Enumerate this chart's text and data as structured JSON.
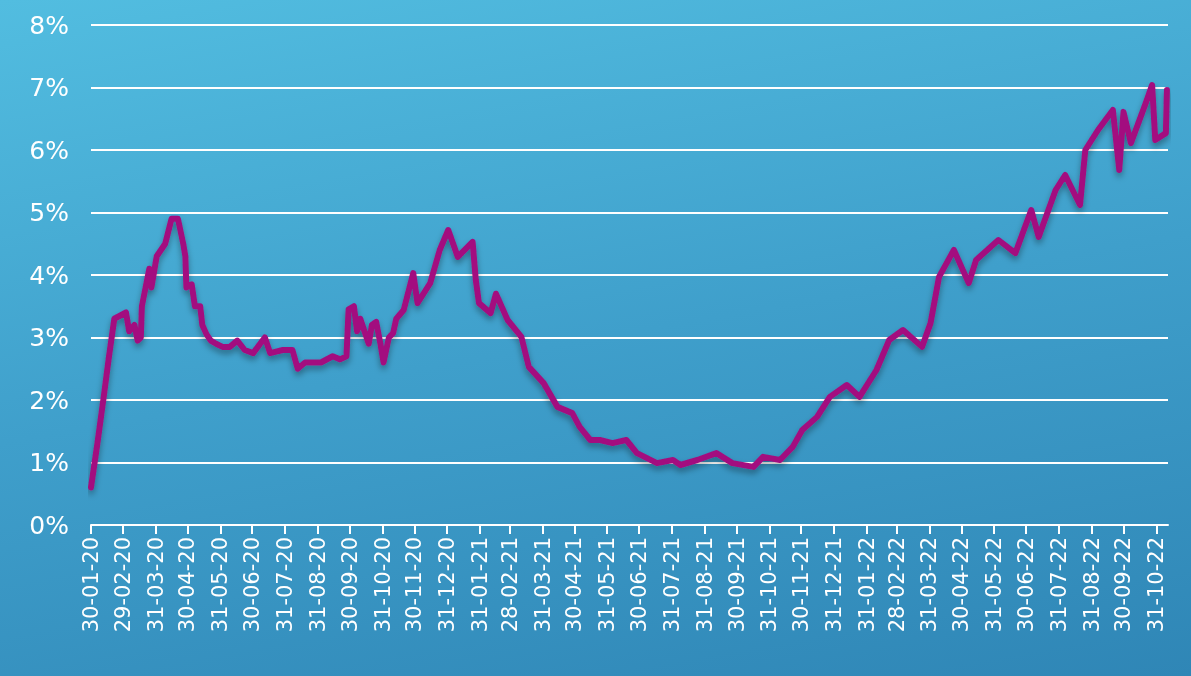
{
  "chart_data": {
    "type": "line",
    "grid": "y",
    "marker": "none",
    "line_style": "solid",
    "xlim": [
      "2020-01-30",
      "2022-11-11"
    ],
    "xticks": [
      {
        "value": "2020-01-30",
        "label": "30-01-20"
      },
      {
        "value": "2020-02-29",
        "label": "29-02-20"
      },
      {
        "value": "2020-03-31",
        "label": "31-03-20"
      },
      {
        "value": "2020-04-30",
        "label": "30-04-20"
      },
      {
        "value": "2020-05-31",
        "label": "31-05-20"
      },
      {
        "value": "2020-06-30",
        "label": "30-06-20"
      },
      {
        "value": "2020-07-31",
        "label": "31-07-20"
      },
      {
        "value": "2020-08-31",
        "label": "31-08-20"
      },
      {
        "value": "2020-09-30",
        "label": "30-09-20"
      },
      {
        "value": "2020-10-31",
        "label": "31-10-20"
      },
      {
        "value": "2020-11-30",
        "label": "30-11-20"
      },
      {
        "value": "2020-12-31",
        "label": "31-12-20"
      },
      {
        "value": "2021-01-31",
        "label": "31-01-21"
      },
      {
        "value": "2021-02-28",
        "label": "28-02-21"
      },
      {
        "value": "2021-03-31",
        "label": "31-03-21"
      },
      {
        "value": "2021-04-30",
        "label": "30-04-21"
      },
      {
        "value": "2021-05-31",
        "label": "31-05-21"
      },
      {
        "value": "2021-06-30",
        "label": "30-06-21"
      },
      {
        "value": "2021-07-31",
        "label": "31-07-21"
      },
      {
        "value": "2021-08-31",
        "label": "31-08-21"
      },
      {
        "value": "2021-09-30",
        "label": "30-09-21"
      },
      {
        "value": "2021-10-31",
        "label": "31-10-21"
      },
      {
        "value": "2021-11-30",
        "label": "30-11-21"
      },
      {
        "value": "2021-12-31",
        "label": "31-12-21"
      },
      {
        "value": "2022-01-31",
        "label": "31-01-22"
      },
      {
        "value": "2022-02-28",
        "label": "28-02-22"
      },
      {
        "value": "2022-03-31",
        "label": "31-03-22"
      },
      {
        "value": "2022-04-30",
        "label": "30-04-22"
      },
      {
        "value": "2022-05-31",
        "label": "31-05-22"
      },
      {
        "value": "2022-06-30",
        "label": "30-06-22"
      },
      {
        "value": "2022-07-31",
        "label": "31-07-22"
      },
      {
        "value": "2022-08-31",
        "label": "31-08-22"
      },
      {
        "value": "2022-09-30",
        "label": "30-09-22"
      },
      {
        "value": "2022-10-31",
        "label": "31-10-22"
      }
    ],
    "ylim": [
      0,
      8
    ],
    "yticks": [
      {
        "value": 0,
        "label": "0%"
      },
      {
        "value": 1,
        "label": "1%"
      },
      {
        "value": 2,
        "label": "2%"
      },
      {
        "value": 3,
        "label": "3%"
      },
      {
        "value": 4,
        "label": "4%"
      },
      {
        "value": 5,
        "label": "5%"
      },
      {
        "value": 6,
        "label": "6%"
      },
      {
        "value": 7,
        "label": "7%"
      },
      {
        "value": 8,
        "label": "8%"
      }
    ],
    "series": [
      {
        "color": "#a3117f",
        "x": [
          "2020-01-30",
          "2020-02-05",
          "2020-02-11",
          "2020-02-16",
          "2020-02-21",
          "2020-03-03",
          "2020-03-06",
          "2020-03-11",
          "2020-03-14",
          "2020-03-17",
          "2020-03-18",
          "2020-03-25",
          "2020-03-27",
          "2020-04-01",
          "2020-04-09",
          "2020-04-15",
          "2020-04-21",
          "2020-04-26",
          "2020-04-28",
          "2020-04-29",
          "2020-05-04",
          "2020-05-07",
          "2020-05-12",
          "2020-05-14",
          "2020-05-18",
          "2020-05-22",
          "2020-05-27",
          "2020-06-02",
          "2020-06-09",
          "2020-06-16",
          "2020-06-23",
          "2020-07-01",
          "2020-07-12",
          "2020-07-17",
          "2020-07-29",
          "2020-08-07",
          "2020-08-12",
          "2020-08-19",
          "2020-09-03",
          "2020-09-14",
          "2020-09-21",
          "2020-09-27",
          "2020-09-29",
          "2020-10-04",
          "2020-10-07",
          "2020-10-10",
          "2020-10-18",
          "2020-10-21",
          "2020-10-25",
          "2020-10-29",
          "2020-11-01",
          "2020-11-06",
          "2020-11-10",
          "2020-11-13",
          "2020-11-20",
          "2020-11-29",
          "2020-12-03",
          "2020-12-15",
          "2020-12-24",
          "2021-01-01",
          "2021-01-10",
          "2021-01-24",
          "2021-01-27",
          "2021-01-30",
          "2021-02-10",
          "2021-02-15",
          "2021-02-26",
          "2021-03-11",
          "2021-03-18",
          "2021-04-01",
          "2021-04-14",
          "2021-04-28",
          "2021-05-05",
          "2021-05-15",
          "2021-05-24",
          "2021-06-05",
          "2021-06-18",
          "2021-06-28",
          "2021-07-17",
          "2021-08-01",
          "2021-08-08",
          "2021-08-24",
          "2021-09-11",
          "2021-09-26",
          "2021-10-16",
          "2021-10-25",
          "2021-11-10",
          "2021-11-22",
          "2021-12-01",
          "2021-12-15",
          "2021-12-27",
          "2022-01-12",
          "2022-01-24",
          "2022-02-09",
          "2022-02-21",
          "2022-03-06",
          "2022-03-24",
          "2022-04-01",
          "2022-04-09",
          "2022-04-23",
          "2022-05-07",
          "2022-05-14",
          "2022-06-04",
          "2022-06-20",
          "2022-07-05",
          "2022-07-12",
          "2022-07-28",
          "2022-08-06",
          "2022-08-20",
          "2022-08-25",
          "2022-09-06",
          "2022-09-20",
          "2022-09-26",
          "2022-09-30",
          "2022-10-07",
          "2022-10-21",
          "2022-10-27",
          "2022-10-30",
          "2022-11-09",
          "2022-11-10"
        ],
        "values": [
          0.6,
          1.3,
          2.05,
          2.7,
          3.3,
          3.4,
          3.1,
          3.2,
          2.95,
          3.0,
          3.5,
          4.1,
          3.8,
          4.3,
          4.5,
          4.9,
          4.9,
          4.5,
          4.3,
          3.8,
          3.85,
          3.5,
          3.5,
          3.2,
          3.05,
          2.95,
          2.9,
          2.85,
          2.85,
          2.95,
          2.8,
          2.75,
          3.0,
          2.75,
          2.8,
          2.8,
          2.5,
          2.6,
          2.6,
          2.7,
          2.65,
          2.7,
          3.45,
          3.5,
          3.1,
          3.3,
          2.9,
          3.2,
          3.25,
          2.9,
          2.6,
          3.0,
          3.07,
          3.3,
          3.44,
          4.03,
          3.55,
          3.87,
          4.4,
          4.72,
          4.29,
          4.53,
          3.92,
          3.55,
          3.39,
          3.7,
          3.28,
          3.01,
          2.53,
          2.27,
          1.89,
          1.79,
          1.57,
          1.36,
          1.36,
          1.31,
          1.36,
          1.15,
          0.99,
          1.04,
          0.96,
          1.04,
          1.15,
          0.99,
          0.93,
          1.09,
          1.04,
          1.25,
          1.52,
          1.73,
          2.05,
          2.24,
          2.05,
          2.48,
          2.96,
          3.12,
          2.85,
          3.23,
          3.97,
          4.4,
          3.87,
          4.24,
          4.56,
          4.35,
          5.04,
          4.61,
          5.36,
          5.6,
          5.12,
          6.0,
          6.32,
          6.64,
          5.68,
          6.61,
          6.11,
          6.75,
          7.04,
          6.16,
          6.27,
          6.96
        ]
      }
    ]
  }
}
